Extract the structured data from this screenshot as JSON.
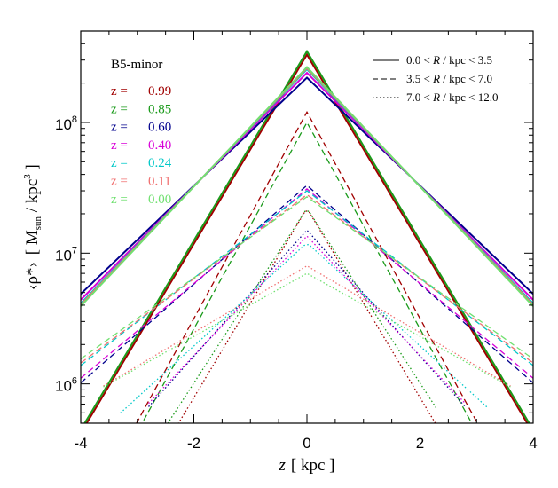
{
  "chart_data": {
    "type": "line",
    "title": "",
    "panel_label": "B5-minor",
    "xlabel_var": "z",
    "xlabel_unit": "[ kpc ]",
    "ylabel_var": "‹ρ*›",
    "ylabel_unit_open": "[ M",
    "ylabel_unit_sub": "sun",
    "ylabel_unit_mid": " / kpc",
    "ylabel_unit_sup": "3",
    "ylabel_unit_close": " ]",
    "xlim": [
      -4,
      4
    ],
    "ylim": [
      500000,
      500000000
    ],
    "yscale": "log",
    "grid": false,
    "x_ticks": [
      {
        "value": -4,
        "label": "-4"
      },
      {
        "value": -2,
        "label": "-2"
      },
      {
        "value": 0,
        "label": "0"
      },
      {
        "value": 2,
        "label": "2"
      },
      {
        "value": 4,
        "label": "4"
      }
    ],
    "y_ticks": [
      {
        "value": 1000000,
        "base": "10",
        "exp": "6"
      },
      {
        "value": 10000000,
        "base": "10",
        "exp": "7"
      },
      {
        "value": 100000000,
        "base": "10",
        "exp": "8"
      }
    ],
    "redshift_legend": [
      {
        "prefix": "z =",
        "value": "0.99",
        "color": "#a00000"
      },
      {
        "prefix": "z =",
        "value": "0.85",
        "color": "#1a9a1a"
      },
      {
        "prefix": "z =",
        "value": "0.60",
        "color": "#00008c"
      },
      {
        "prefix": "z =",
        "value": "0.40",
        "color": "#d800d8"
      },
      {
        "prefix": "z =",
        "value": "0.24",
        "color": "#00c8c8"
      },
      {
        "prefix": "z =",
        "value": "0.11",
        "color": "#f07070"
      },
      {
        "prefix": "z =",
        "value": "0.00",
        "color": "#70e070"
      }
    ],
    "radius_legend": [
      {
        "label_a": "0.0 < ",
        "label_r": "R",
        "label_b": " / kpc < 3.5",
        "dash": "solid"
      },
      {
        "label_a": "3.5 < ",
        "label_r": "R",
        "label_b": " / kpc < 7.0",
        "dash": "dashed"
      },
      {
        "label_a": "7.0 < ",
        "label_r": "R",
        "label_b": " / kpc < 12.0",
        "dash": "dotted"
      }
    ],
    "profiles": [
      {
        "redshift": "0.99",
        "dash": "solid",
        "peak": 330000000,
        "width": 0.6,
        "xmin": -4,
        "xmax": 4
      },
      {
        "redshift": "0.85",
        "dash": "solid",
        "peak": 350000000,
        "width": 0.6,
        "xmin": -4,
        "xmax": 4
      },
      {
        "redshift": "0.60",
        "dash": "solid",
        "peak": 220000000,
        "width": 1.05,
        "xmin": -4,
        "xmax": 4
      },
      {
        "redshift": "0.40",
        "dash": "solid",
        "peak": 240000000,
        "width": 1.0,
        "xmin": -4,
        "xmax": 4
      },
      {
        "redshift": "0.24",
        "dash": "solid",
        "peak": 255000000,
        "width": 0.97,
        "xmin": -4,
        "xmax": 4
      },
      {
        "redshift": "0.11",
        "dash": "solid",
        "peak": 260000000,
        "width": 0.96,
        "xmin": -4,
        "xmax": 4
      },
      {
        "redshift": "0.00",
        "dash": "solid",
        "peak": 265000000,
        "width": 0.95,
        "xmin": -4,
        "xmax": 4
      },
      {
        "redshift": "0.99",
        "dash": "dashed",
        "peak": 120000000,
        "width": 0.55,
        "xmin": -4,
        "xmax": 4
      },
      {
        "redshift": "0.85",
        "dash": "dashed",
        "peak": 100000000,
        "width": 0.55,
        "xmin": -4,
        "xmax": 4
      },
      {
        "redshift": "0.60",
        "dash": "dashed",
        "peak": 33000000,
        "width": 1.15,
        "xmin": -4,
        "xmax": 4
      },
      {
        "redshift": "0.40",
        "dash": "dashed",
        "peak": 31000000,
        "width": 1.2,
        "xmin": -4,
        "xmax": 4
      },
      {
        "redshift": "0.24",
        "dash": "dashed",
        "peak": 30000000,
        "width": 1.3,
        "xmin": -4,
        "xmax": 4
      },
      {
        "redshift": "0.11",
        "dash": "dashed",
        "peak": 28000000,
        "width": 1.35,
        "xmin": -4,
        "xmax": 4
      },
      {
        "redshift": "0.00",
        "dash": "dashed",
        "peak": 27000000,
        "width": 1.4,
        "xmin": -4,
        "xmax": 4
      },
      {
        "redshift": "0.99",
        "dash": "dotted",
        "peak": 22000000,
        "width": 0.6,
        "xmin": -2.6,
        "xmax": 2.3
      },
      {
        "redshift": "0.85",
        "dash": "dotted",
        "peak": 22000000,
        "width": 0.65,
        "xmin": -2.6,
        "xmax": 2.3
      },
      {
        "redshift": "0.60",
        "dash": "dotted",
        "peak": 15000000,
        "width": 0.9,
        "xmin": -2.8,
        "xmax": 2.8
      },
      {
        "redshift": "0.40",
        "dash": "dotted",
        "peak": 13500000,
        "width": 0.95,
        "xmin": -2.8,
        "xmax": 2.8
      },
      {
        "redshift": "0.24",
        "dash": "dotted",
        "peak": 12000000,
        "width": 1.1,
        "xmin": -3.3,
        "xmax": 3.2
      },
      {
        "redshift": "0.11",
        "dash": "dotted",
        "peak": 8000000,
        "width": 1.7,
        "xmin": -3.6,
        "xmax": 3.6
      },
      {
        "redshift": "0.00",
        "dash": "dotted",
        "peak": 7000000,
        "width": 1.8,
        "xmin": -3.6,
        "xmax": 3.6
      }
    ]
  }
}
